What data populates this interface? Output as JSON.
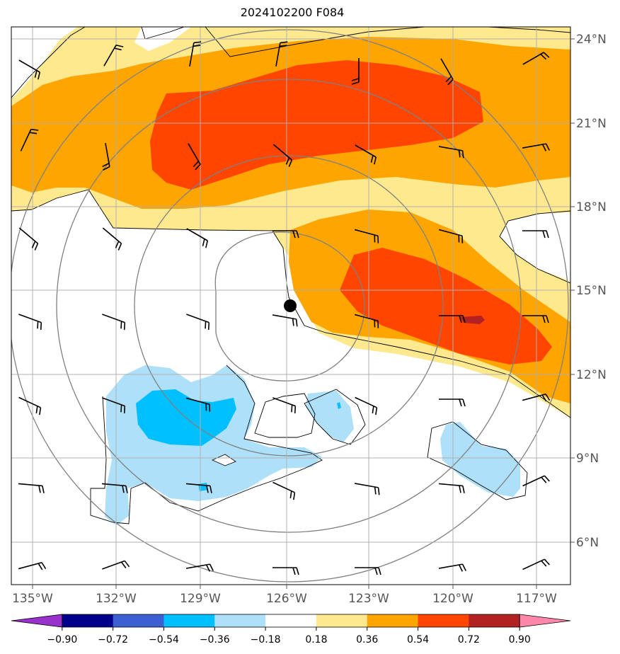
{
  "title": "2024102200 F084",
  "map": {
    "lon_labels": [
      "135°W",
      "132°W",
      "129°W",
      "126°W",
      "123°W",
      "120°W",
      "117°W"
    ],
    "lat_labels": [
      "24°N",
      "21°N",
      "18°N",
      "15°N",
      "12°N",
      "9°N",
      "6°N"
    ],
    "storm_center": {
      "lon": "126°W",
      "lat": "14.5°N"
    }
  },
  "colorbar": {
    "ticks": [
      "−0.90",
      "−0.72",
      "−0.54",
      "−0.36",
      "−0.18",
      "0.18",
      "0.36",
      "0.54",
      "0.72",
      "0.90"
    ],
    "colors": [
      "#9932cc",
      "#00008b",
      "#3c5fd2",
      "#00bfff",
      "#aee0fa",
      "#ffffff",
      "#ffe98f",
      "#ffa500",
      "#ff4500",
      "#b22222",
      "#ff88aa"
    ]
  },
  "colors": {
    "light_yellow": "#ffe98f",
    "orange": "#ffa500",
    "red_orange": "#ff4500",
    "dark_red": "#b22222",
    "light_blue": "#aee0fa",
    "deep_sky_blue": "#00bfff",
    "range_rings": "#808080",
    "grid": "#b0b0b0"
  }
}
